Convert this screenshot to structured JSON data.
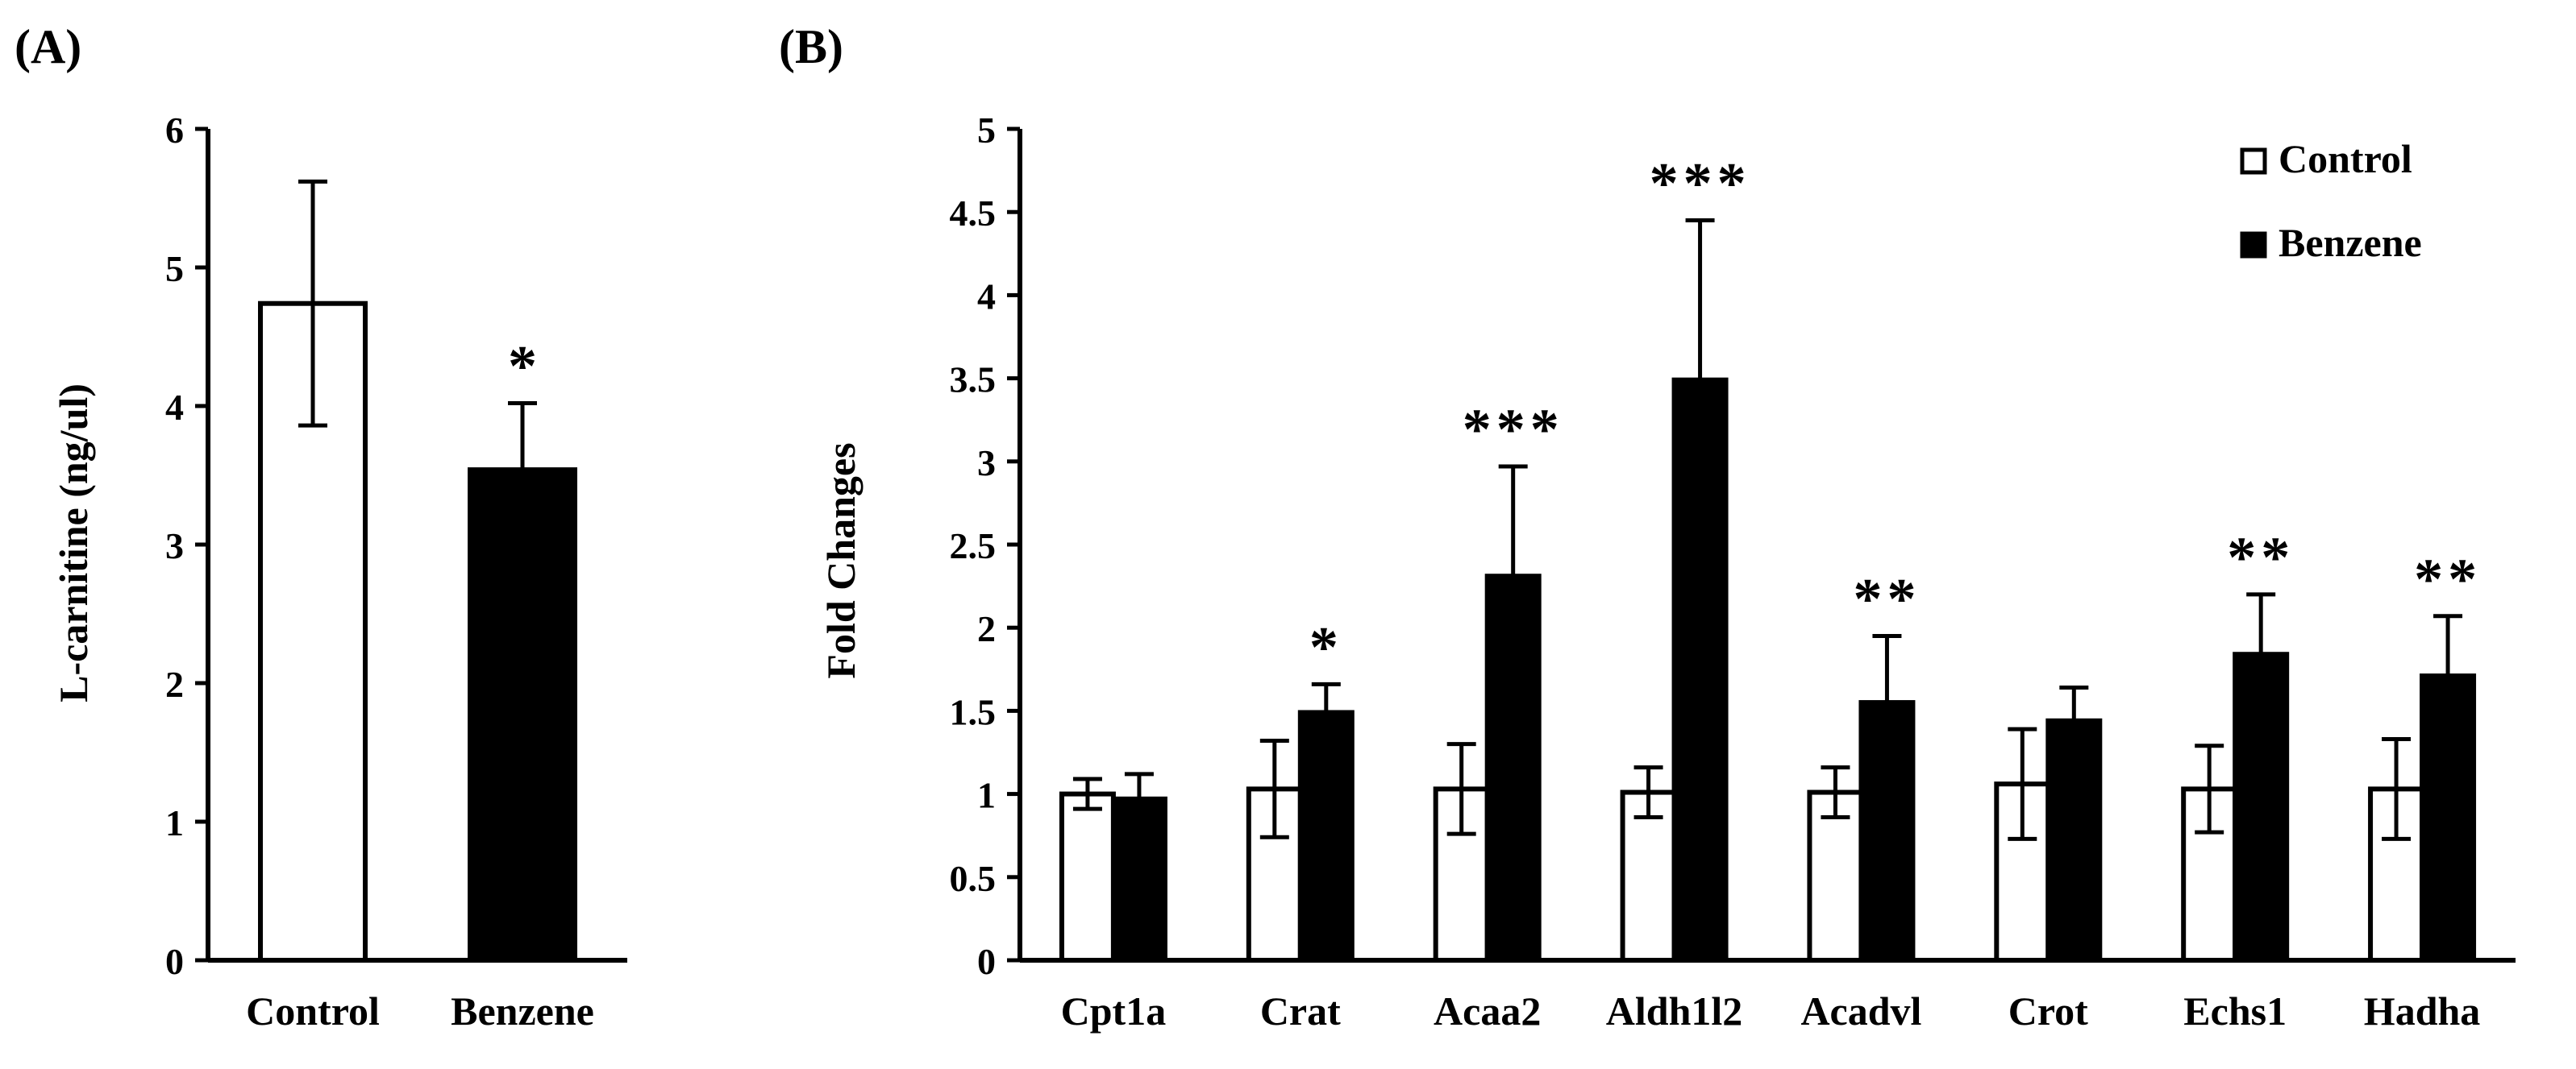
{
  "chart_data": [
    {
      "panel_label": "(A)",
      "type": "bar",
      "title": "",
      "xlabel": "",
      "ylabel": "L-carnitine (ng/ul)",
      "ylim": [
        0,
        6
      ],
      "yticks": [
        "0",
        "1",
        "2",
        "3",
        "4",
        "5",
        "6"
      ],
      "categories": [
        "Control",
        "Benzene"
      ],
      "values": [
        4.74,
        3.54
      ],
      "errors": [
        0.88,
        0.48
      ],
      "fills": [
        "#ffffff",
        "#000000"
      ],
      "significance": [
        "",
        "*"
      ],
      "grid": false
    },
    {
      "panel_label": "(B)",
      "type": "bar",
      "title": "",
      "xlabel": "",
      "ylabel": "Fold Changes",
      "ylim": [
        0,
        5
      ],
      "yticks": [
        "0",
        "0.5",
        "1",
        "1.5",
        "2",
        "2.5",
        "3",
        "3.5",
        "4",
        "4.5",
        "5"
      ],
      "categories": [
        "Cpt1a",
        "Crat",
        "Acaa2",
        "Aldh1l2",
        "Acadvl",
        "Crot",
        "Echs1",
        "Hadha"
      ],
      "series": [
        {
          "name": "Control",
          "fill": "#ffffff",
          "values": [
            1.0,
            1.03,
            1.03,
            1.01,
            1.01,
            1.06,
            1.03,
            1.03
          ],
          "errors": [
            0.09,
            0.29,
            0.27,
            0.15,
            0.15,
            0.33,
            0.26,
            0.3
          ]
        },
        {
          "name": "Benzene",
          "fill": "#000000",
          "values": [
            0.97,
            1.49,
            2.31,
            3.49,
            1.55,
            1.44,
            1.84,
            1.71
          ],
          "errors": [
            0.15,
            0.17,
            0.66,
            0.96,
            0.4,
            0.2,
            0.36,
            0.36
          ]
        }
      ],
      "significance": [
        "",
        "*",
        "***",
        "***",
        "**",
        "",
        "**",
        "**"
      ],
      "legend_position": "top-right",
      "grid": false
    }
  ]
}
